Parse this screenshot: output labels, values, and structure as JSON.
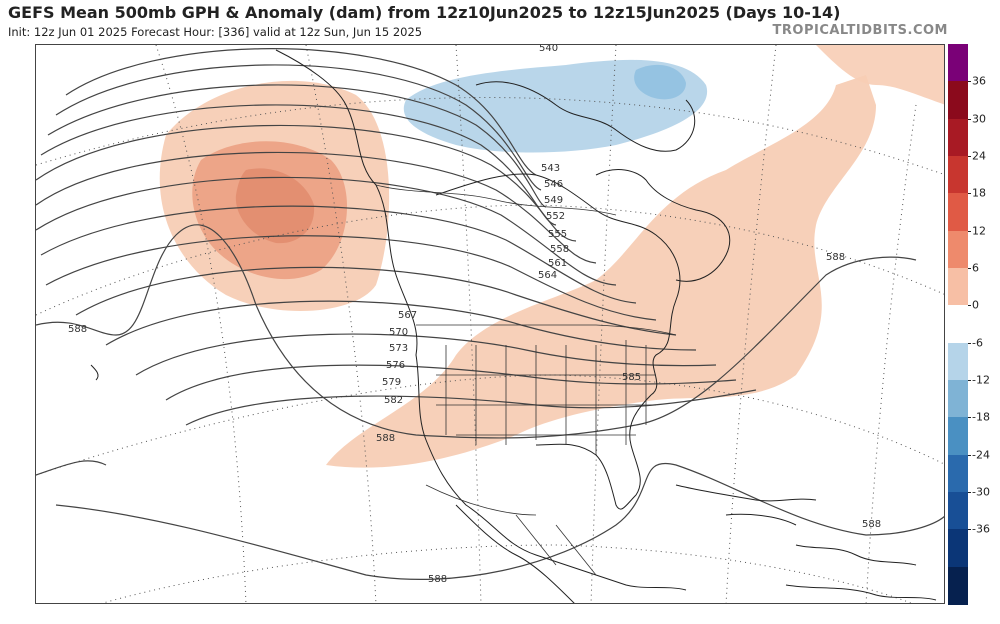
{
  "header": {
    "title": "GEFS Mean 500mb GPH & Anomaly (dam) from 12z10Jun2025 to 12z15Jun2025 (Days 10-14)",
    "subtitle": "Init: 12z Jun 01 2025   Forecast Hour: [336]   valid at 12z Sun, Jun 15 2025",
    "brand": "TROPICALTIDBITS.COM"
  },
  "colorbar": {
    "labels": [
      "36",
      "30",
      "24",
      "18",
      "12",
      "6",
      "0",
      "-6",
      "-12",
      "-18",
      "-24",
      "-30",
      "-36"
    ],
    "colors": [
      "#7a0177",
      "#8b0a1c",
      "#a81a24",
      "#c8362f",
      "#e05a45",
      "#ee8a6c",
      "#f7bfa5",
      "#ffffff",
      "#b5d4e9",
      "#7fb3d5",
      "#4a90c2",
      "#2a6aad",
      "#184f96",
      "#0b3677",
      "#06214f"
    ]
  },
  "contour_labels": {
    "c540": "540",
    "c543": "543",
    "c546": "546",
    "c549": "549",
    "c552": "552",
    "c555": "555",
    "c558": "558",
    "c561": "561",
    "c564": "564",
    "c567": "567",
    "c570": "570",
    "c573": "573",
    "c576": "576",
    "c579": "579",
    "c582": "582",
    "c585": "585",
    "c588_west": "588",
    "c588_central": "588",
    "c588_south": "588",
    "c588_east": "588",
    "c588_carib": "588"
  }
}
